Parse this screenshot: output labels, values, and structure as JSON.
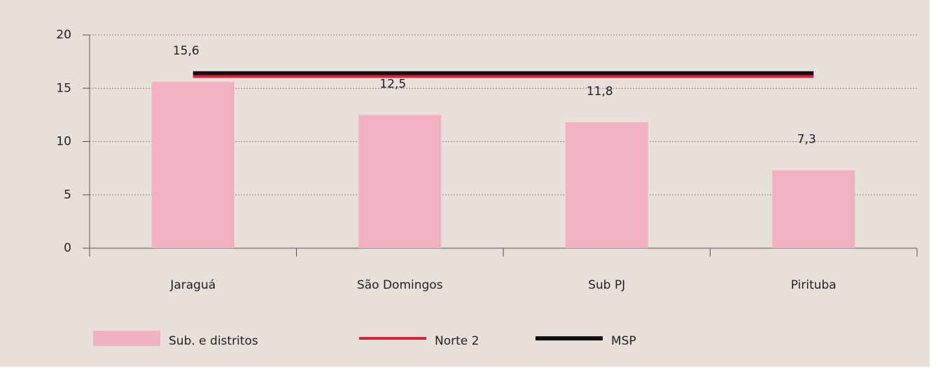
{
  "chart_data": {
    "type": "bar",
    "categories": [
      "Jaraguá",
      "São Domingos",
      "Sub PJ",
      "Pirituba"
    ],
    "series": [
      {
        "name": "Sub. e distritos",
        "type": "bar",
        "color": "#f2b1c2",
        "values": [
          15.6,
          12.5,
          11.8,
          7.3
        ],
        "value_labels": [
          "15,6",
          "12,5",
          "11,8",
          "7,3"
        ]
      },
      {
        "name": "Norte 2",
        "type": "line",
        "color": "#e0203c",
        "values": [
          16.1,
          16.1,
          16.1,
          16.1
        ]
      },
      {
        "name": "MSP",
        "type": "line",
        "color": "#111111",
        "values": [
          16.4,
          16.4,
          16.4,
          16.4
        ]
      }
    ],
    "ylim": [
      0,
      20
    ],
    "yticks": [
      0,
      5,
      10,
      15,
      20
    ],
    "grid": true
  }
}
